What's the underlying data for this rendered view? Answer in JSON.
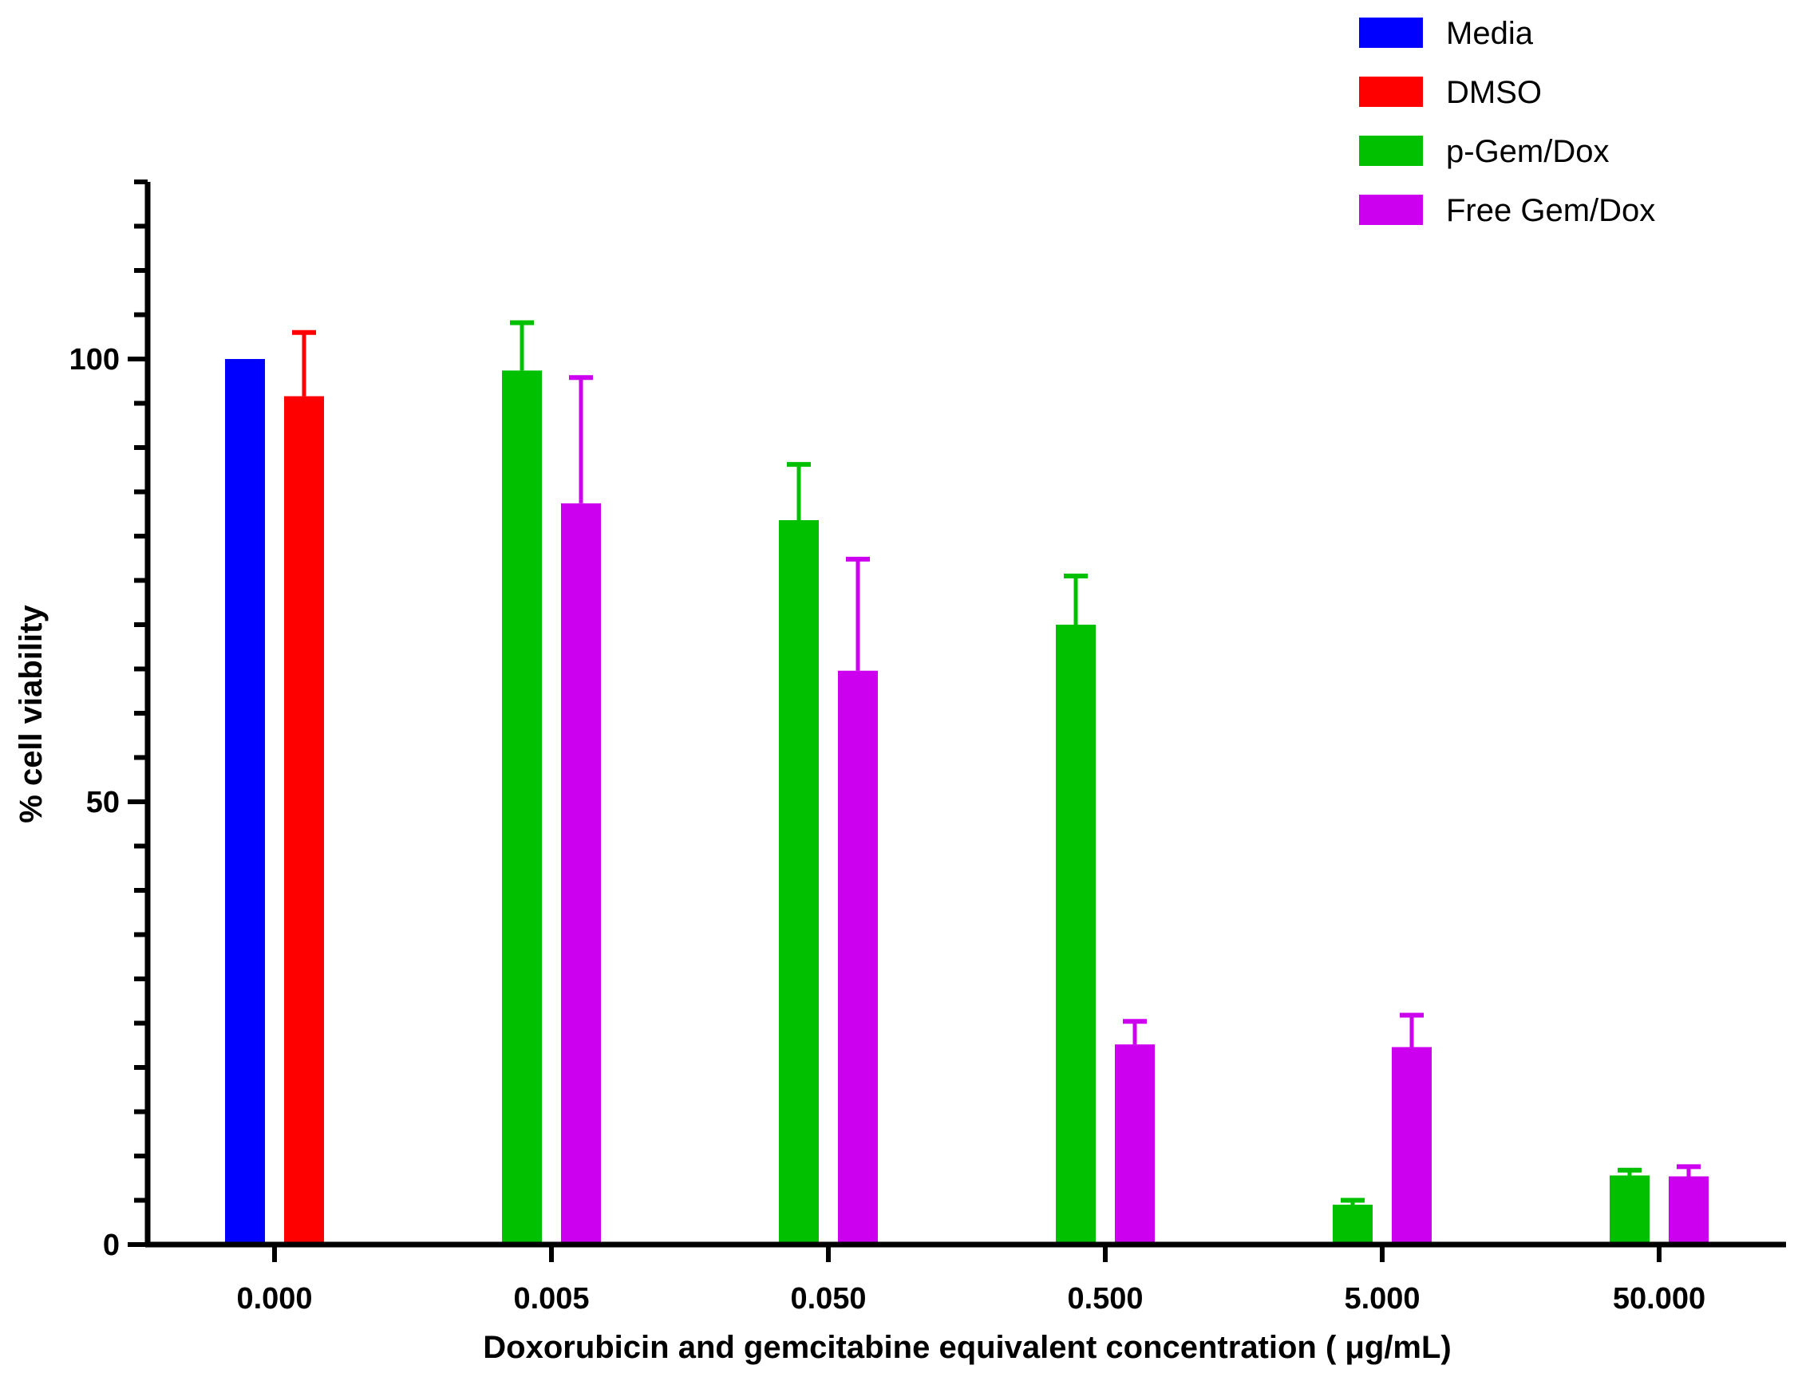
{
  "chart_data": {
    "type": "bar",
    "title": "",
    "xlabel": "Doxorubicin and gemcitabine equivalent concentration ( μg/mL)",
    "ylabel": "% cell viability",
    "ylim": [
      0,
      120
    ],
    "yticks_major": [
      0,
      50,
      100
    ],
    "yticks_major_labels": [
      "0",
      "50",
      "100"
    ],
    "ytick_minor_step": 5,
    "categories": [
      "0.000",
      "0.005",
      "0.050",
      "0.500",
      "5.000",
      "50.000"
    ],
    "series": [
      {
        "name": "Media",
        "color": "#0000ff",
        "values": [
          100,
          null,
          null,
          null,
          null,
          null
        ],
        "errors": [
          0,
          null,
          null,
          null,
          null,
          null
        ]
      },
      {
        "name": "DMSO",
        "color": "#ff0000",
        "values": [
          95.8,
          null,
          null,
          null,
          null,
          null
        ],
        "errors": [
          7.2,
          null,
          null,
          null,
          null,
          null
        ]
      },
      {
        "name": "p-Gem/Dox",
        "color": "#00c000",
        "values": [
          null,
          98.7,
          81.8,
          70.0,
          4.5,
          7.8
        ],
        "errors": [
          null,
          5.4,
          6.3,
          5.5,
          0.5,
          0.6
        ]
      },
      {
        "name": "Free Gem/Dox",
        "color": "#cc00ee",
        "values": [
          null,
          83.7,
          64.8,
          22.6,
          22.3,
          7.7
        ],
        "errors": [
          null,
          14.2,
          12.6,
          2.6,
          3.6,
          1.1
        ]
      }
    ],
    "legend_position": "top-right"
  }
}
